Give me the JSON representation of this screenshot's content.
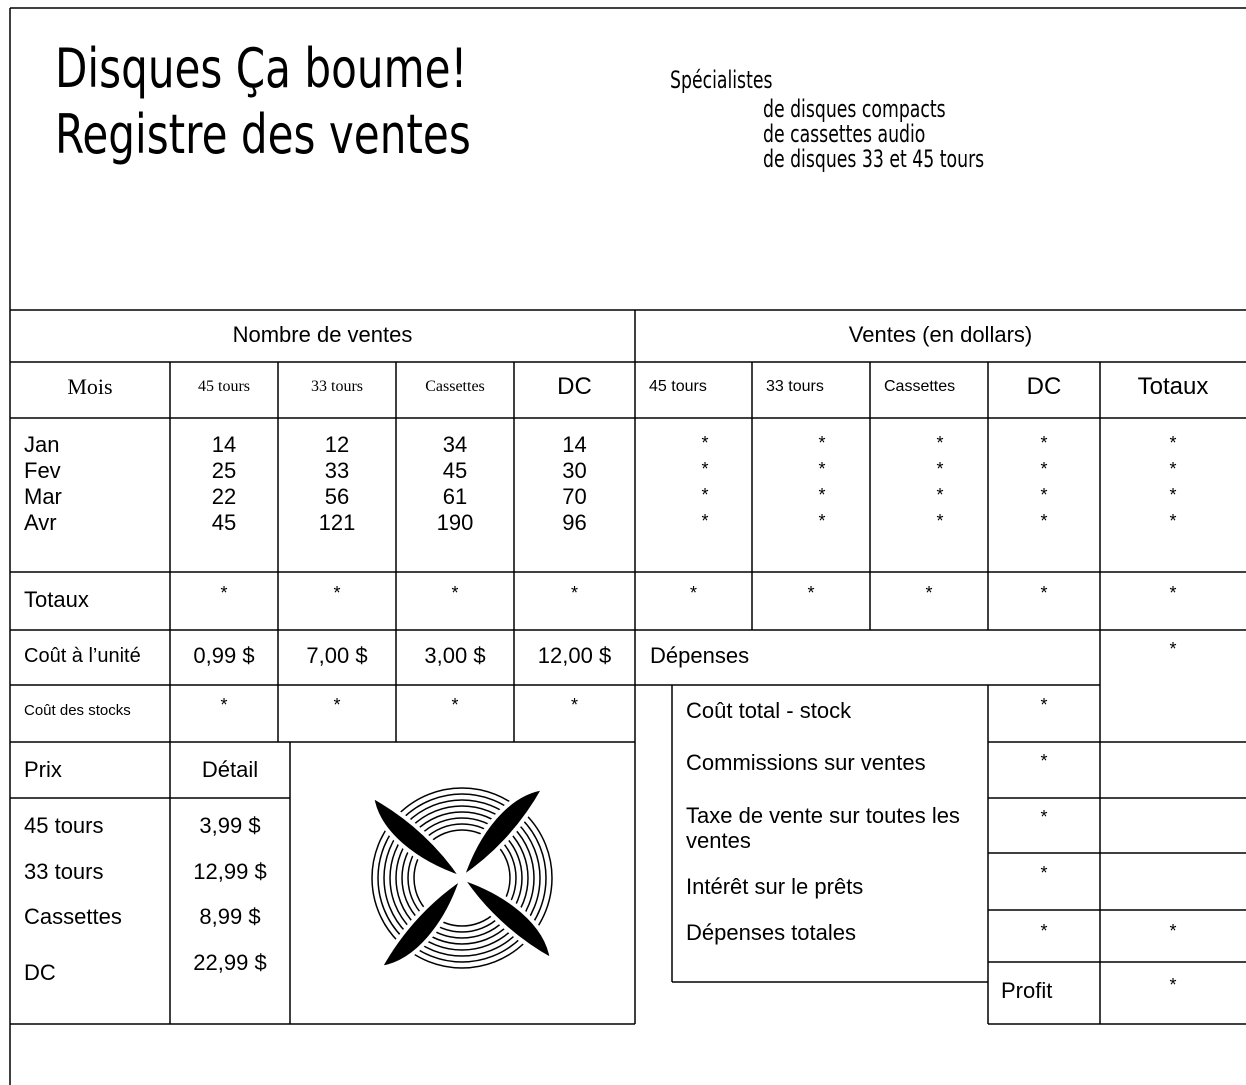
{
  "header": {
    "title_line1": "Disques Ça boume!",
    "title_line2": "Registre des ventes",
    "tagline": "Spécialistes",
    "specialties": [
      "de disques compacts",
      "de cassettes audio",
      "de disques 33 et 45 tours"
    ]
  },
  "table": {
    "groups": [
      "Nombre de ventes",
      "Ventes (en dollars)"
    ],
    "columns": [
      "Mois",
      "45 tours",
      "33 tours",
      "Cassettes",
      "DC",
      "45 tours",
      "33 tours",
      "Cassettes",
      "DC",
      "Totaux"
    ],
    "months": [
      "Jan",
      "Fev",
      "Mar",
      "Avr"
    ],
    "units_sold": [
      [
        14,
        12,
        34,
        14
      ],
      [
        25,
        33,
        45,
        30
      ],
      [
        22,
        56,
        61,
        70
      ],
      [
        45,
        121,
        190,
        96
      ]
    ],
    "sales_dollars": [
      [
        "*",
        "*",
        "*",
        "*",
        "*"
      ],
      [
        "*",
        "*",
        "*",
        "*",
        "*"
      ],
      [
        "*",
        "*",
        "*",
        "*",
        "*"
      ],
      [
        "*",
        "*",
        "*",
        "*",
        "*"
      ]
    ],
    "totals_label": "Totaux",
    "totals": [
      "*",
      "*",
      "*",
      "*",
      "*",
      "*",
      "*",
      "*",
      "*"
    ],
    "unit_cost_label": "Coût à l’unité",
    "unit_cost": [
      "0,99 $",
      "7,00 $",
      "3,00 $",
      "12,00 $"
    ],
    "expenses_label": "Dépenses",
    "expenses_value": "*",
    "stock_cost_label": "Coût des stocks",
    "stock_cost": [
      "*",
      "*",
      "*",
      "*"
    ]
  },
  "prices": {
    "label": "Prix",
    "detail_label": "Détail",
    "rows": [
      [
        "45 tours",
        "3,99 $"
      ],
      [
        "33 tours",
        "12,99 $"
      ],
      [
        "Cassettes",
        "8,99 $"
      ],
      [
        "DC",
        "22,99 $"
      ]
    ]
  },
  "expenses": {
    "items": [
      {
        "label": "Coût total - stock",
        "value": "*"
      },
      {
        "label": "Commissions sur ventes",
        "value": "*"
      },
      {
        "label": "Taxe de vente sur toutes les ventes",
        "value": "*"
      },
      {
        "label": "Intérêt sur le prêts",
        "value": "*"
      },
      {
        "label": "Dépenses totales",
        "value": "*",
        "total": "*"
      }
    ],
    "profit_label": "Profit",
    "profit": "*"
  }
}
